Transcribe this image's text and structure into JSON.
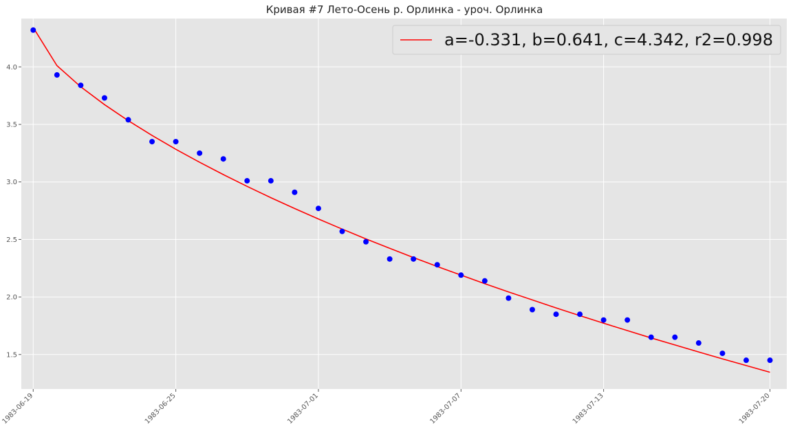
{
  "chart_data": {
    "type": "scatter",
    "title": "Кривая #7 Лето-Осень р. Орлинка - уроч. Орлинка",
    "xlabel": "",
    "ylabel": "",
    "x_axis": "date",
    "xlim": [
      "1983-06-18T12:00",
      "1983-07-20T17:00"
    ],
    "ylim": [
      1.2,
      4.42
    ],
    "x_ticks": [
      "1983-06-19",
      "1983-06-25",
      "1983-07-01",
      "1983-07-07",
      "1983-07-13",
      "1983-07-20"
    ],
    "y_ticks": [
      1.5,
      2.0,
      2.5,
      3.0,
      3.5,
      4.0
    ],
    "y_tick_labels": [
      "1.5",
      "2.0",
      "2.5",
      "3.0",
      "3.5",
      "4.0"
    ],
    "grid": true,
    "legend": {
      "position": "top-right",
      "entries": [
        "a=-0.331, b=0.641, c=4.342, r2=0.998"
      ]
    },
    "series": [
      {
        "name": "a=-0.331, b=0.641, c=4.342, r2=0.998",
        "kind": "line",
        "color": "#ff0000",
        "x": [
          "1983-06-19",
          "1983-06-20",
          "1983-06-21",
          "1983-06-22",
          "1983-06-23",
          "1983-06-24",
          "1983-06-25",
          "1983-06-26",
          "1983-06-27",
          "1983-06-28",
          "1983-06-29",
          "1983-06-30",
          "1983-07-01",
          "1983-07-02",
          "1983-07-03",
          "1983-07-04",
          "1983-07-05",
          "1983-07-06",
          "1983-07-07",
          "1983-07-08",
          "1983-07-09",
          "1983-07-10",
          "1983-07-11",
          "1983-07-12",
          "1983-07-13",
          "1983-07-14",
          "1983-07-15",
          "1983-07-16",
          "1983-07-17",
          "1983-07-18",
          "1983-07-19",
          "1983-07-20"
        ],
        "y": [
          4.342,
          4.011,
          3.827,
          3.672,
          3.532,
          3.404,
          3.284,
          3.171,
          3.064,
          2.961,
          2.863,
          2.769,
          2.678,
          2.59,
          2.505,
          2.423,
          2.343,
          2.265,
          2.19,
          2.116,
          2.044,
          1.974,
          1.905,
          1.838,
          1.772,
          1.708,
          1.644,
          1.583,
          1.522,
          1.462,
          1.404,
          1.346
        ]
      },
      {
        "name": "",
        "kind": "scatter",
        "color": "#0000ff",
        "x": [
          "1983-06-19",
          "1983-06-20",
          "1983-06-21",
          "1983-06-22",
          "1983-06-23",
          "1983-06-24",
          "1983-06-25",
          "1983-06-26",
          "1983-06-27",
          "1983-06-28",
          "1983-06-29",
          "1983-06-30",
          "1983-07-01",
          "1983-07-02",
          "1983-07-03",
          "1983-07-04",
          "1983-07-05",
          "1983-07-06",
          "1983-07-07",
          "1983-07-08",
          "1983-07-09",
          "1983-07-10",
          "1983-07-11",
          "1983-07-12",
          "1983-07-13",
          "1983-07-14",
          "1983-07-15",
          "1983-07-16",
          "1983-07-17",
          "1983-07-18",
          "1983-07-19",
          "1983-07-20"
        ],
        "y": [
          4.32,
          3.93,
          3.84,
          3.73,
          3.54,
          3.35,
          3.35,
          3.25,
          3.2,
          3.01,
          3.01,
          2.91,
          2.77,
          2.57,
          2.48,
          2.33,
          2.33,
          2.28,
          2.19,
          2.14,
          1.99,
          1.89,
          1.85,
          1.85,
          1.8,
          1.8,
          1.65,
          1.65,
          1.6,
          1.51,
          1.45,
          1.45
        ]
      }
    ]
  }
}
